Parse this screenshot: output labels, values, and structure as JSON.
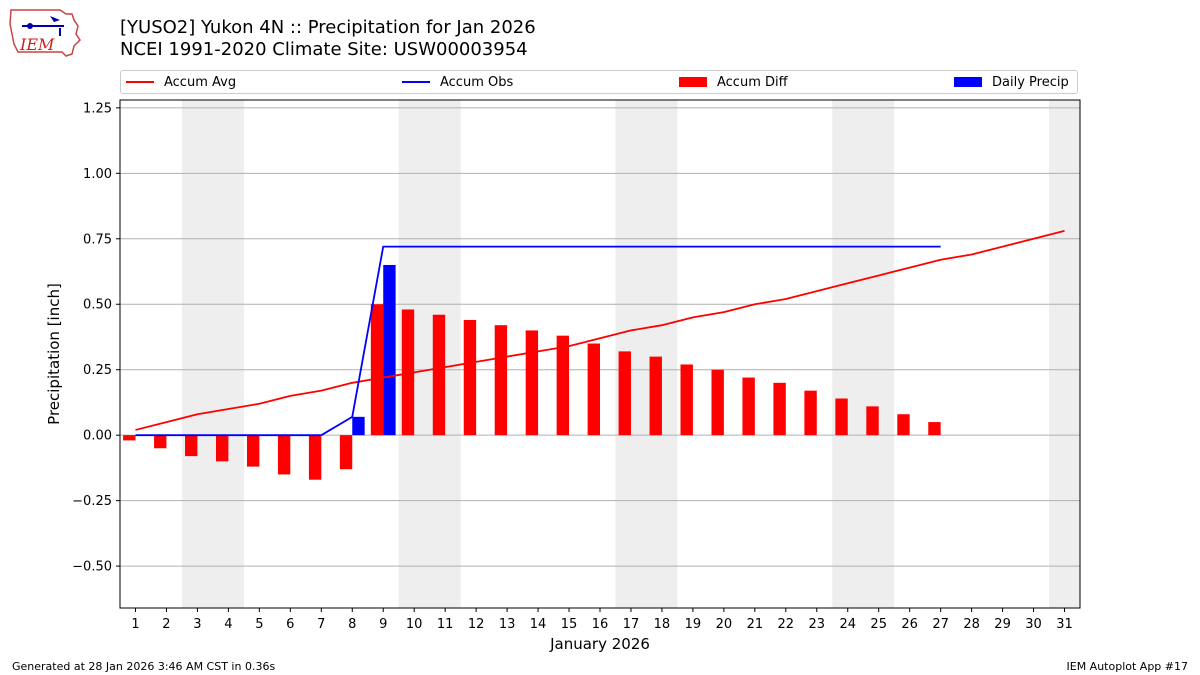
{
  "header": {
    "title_line1": "[YUSO2] Yukon 4N :: Precipitation for Jan 2026",
    "title_line2": "NCEI 1991-2020 Climate Site: USW00003954",
    "logo_text": "IEM"
  },
  "footer": {
    "left": "Generated at 28 Jan 2026 3:46 AM CST in 0.36s",
    "right": "IEM Autoplot App #17"
  },
  "chart_data": {
    "type": "bar",
    "xlabel": "January 2026",
    "ylabel": "Precipitation [inch]",
    "ylim": [
      -0.66,
      1.28
    ],
    "xlim": [
      0.5,
      31.5
    ],
    "yticks": [
      -0.5,
      -0.25,
      0.0,
      0.25,
      0.5,
      0.75,
      1.0,
      1.25
    ],
    "ytick_labels": [
      "−0.50",
      "−0.25",
      "0.00",
      "0.25",
      "0.50",
      "0.75",
      "1.00",
      "1.25"
    ],
    "days": [
      1,
      2,
      3,
      4,
      5,
      6,
      7,
      8,
      9,
      10,
      11,
      12,
      13,
      14,
      15,
      16,
      17,
      18,
      19,
      20,
      21,
      22,
      23,
      24,
      25,
      26,
      27,
      28,
      29,
      30,
      31
    ],
    "weekend_bands": [
      [
        2.5,
        4.5
      ],
      [
        9.5,
        11.5
      ],
      [
        16.5,
        18.5
      ],
      [
        23.5,
        25.5
      ],
      [
        30.5,
        31.5
      ]
    ],
    "grid": true,
    "legend_position": "top",
    "legend": [
      "Accum Avg",
      "Accum Obs",
      "Accum Diff",
      "Daily Precip"
    ],
    "colors": {
      "avg": "#ff0000",
      "obs": "#0000ff",
      "diff": "#ff0000",
      "daily": "#0000ff",
      "band": "#eeeeee",
      "grid": "#b0b0b0"
    },
    "series": [
      {
        "name": "Accum Avg",
        "kind": "line",
        "x": [
          1,
          2,
          3,
          4,
          5,
          6,
          7,
          8,
          9,
          10,
          11,
          12,
          13,
          14,
          15,
          16,
          17,
          18,
          19,
          20,
          21,
          22,
          23,
          24,
          25,
          26,
          27,
          28,
          29,
          30,
          31
        ],
        "values": [
          0.02,
          0.05,
          0.08,
          0.1,
          0.12,
          0.15,
          0.17,
          0.2,
          0.22,
          0.24,
          0.26,
          0.28,
          0.3,
          0.32,
          0.34,
          0.37,
          0.4,
          0.42,
          0.45,
          0.47,
          0.5,
          0.52,
          0.55,
          0.58,
          0.61,
          0.64,
          0.67,
          0.69,
          0.72,
          0.75,
          0.78
        ]
      },
      {
        "name": "Accum Obs",
        "kind": "line",
        "x": [
          1,
          2,
          3,
          4,
          5,
          6,
          7,
          8,
          9,
          10,
          11,
          12,
          13,
          14,
          15,
          16,
          17,
          18,
          19,
          20,
          21,
          22,
          23,
          24,
          25,
          26,
          27
        ],
        "values": [
          0,
          0,
          0,
          0,
          0,
          0,
          0,
          0.07,
          0.72,
          0.72,
          0.72,
          0.72,
          0.72,
          0.72,
          0.72,
          0.72,
          0.72,
          0.72,
          0.72,
          0.72,
          0.72,
          0.72,
          0.72,
          0.72,
          0.72,
          0.72,
          0.72
        ]
      },
      {
        "name": "Accum Diff",
        "kind": "bar",
        "x": [
          1,
          2,
          3,
          4,
          5,
          6,
          7,
          8,
          9,
          10,
          11,
          12,
          13,
          14,
          15,
          16,
          17,
          18,
          19,
          20,
          21,
          22,
          23,
          24,
          25,
          26,
          27
        ],
        "values": [
          -0.02,
          -0.05,
          -0.08,
          -0.1,
          -0.12,
          -0.15,
          -0.17,
          -0.13,
          0.5,
          0.48,
          0.46,
          0.44,
          0.42,
          0.4,
          0.38,
          0.35,
          0.32,
          0.3,
          0.27,
          0.25,
          0.22,
          0.2,
          0.17,
          0.14,
          0.11,
          0.08,
          0.05
        ]
      },
      {
        "name": "Daily Precip",
        "kind": "bar",
        "x": [
          8,
          9
        ],
        "values": [
          0.07,
          0.65
        ]
      }
    ]
  }
}
